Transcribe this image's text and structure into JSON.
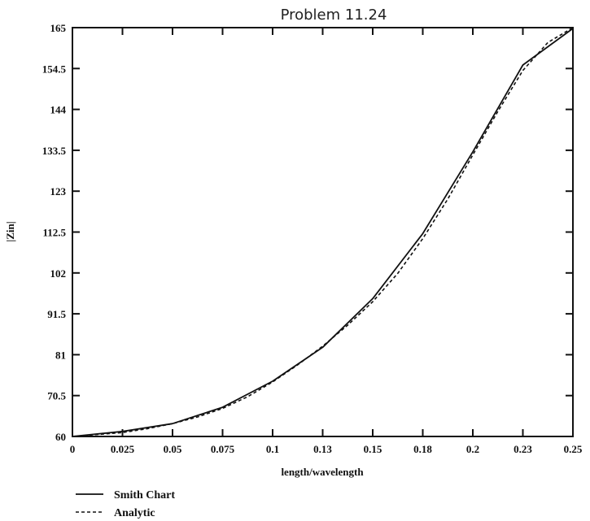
{
  "chart_data": {
    "type": "line",
    "title": "Problem 11.24",
    "xlabel": "length/wavelength",
    "ylabel": "|Zin|",
    "xlim": [
      0,
      0.25
    ],
    "ylim": [
      60,
      165
    ],
    "x_ticks": [
      0,
      0.025,
      0.05,
      0.075,
      0.1,
      0.125,
      0.15,
      0.175,
      0.2,
      0.225,
      0.25
    ],
    "x_tick_labels": [
      "0",
      "0.025",
      "0.05",
      "0.075",
      "0.1",
      "0.13",
      "0.15",
      "0.18",
      "0.2",
      "0.23",
      "0.25"
    ],
    "y_ticks": [
      60,
      70.5,
      81,
      91.5,
      102,
      112.5,
      123,
      133.5,
      144,
      154.5,
      165
    ],
    "y_tick_labels": [
      "60",
      "70.5",
      "81",
      "91.5",
      "102",
      "112.5",
      "123",
      "133.5",
      "144",
      "154.5",
      "165"
    ],
    "grid": false,
    "legend_position": "bottom-left",
    "series": [
      {
        "name": "Smith Chart",
        "style": "solid",
        "x": [
          0,
          0.025,
          0.05,
          0.075,
          0.1,
          0.125,
          0.15,
          0.175,
          0.2,
          0.225,
          0.25
        ],
        "y": [
          60,
          61.3,
          63.3,
          67.5,
          74.2,
          82.9,
          95.4,
          112.1,
          133.1,
          155.4,
          164.8
        ]
      },
      {
        "name": "Analytic",
        "style": "dashed",
        "x": [
          0,
          0.0125,
          0.025,
          0.0375,
          0.05,
          0.0625,
          0.075,
          0.0875,
          0.1,
          0.1125,
          0.125,
          0.1375,
          0.15,
          0.1625,
          0.175,
          0.1875,
          0.2,
          0.2125,
          0.225,
          0.2375,
          0.25
        ],
        "y": [
          60,
          60.5,
          61.0,
          62.0,
          63.3,
          65.0,
          67.2,
          70.2,
          74.0,
          78.4,
          83.2,
          88.6,
          94.6,
          101.9,
          110.8,
          121.0,
          132.3,
          143.5,
          154.0,
          161.2,
          165.0
        ]
      }
    ]
  }
}
